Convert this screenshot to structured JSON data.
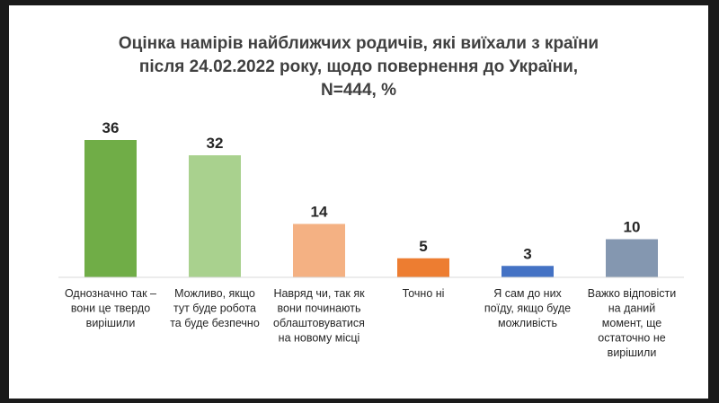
{
  "chart_data": {
    "type": "bar",
    "title": [
      "Оцінка намірів найближчих родичів, які виїхали з країни",
      "після 24.02.2022 року, щодо повернення до України,",
      "N=444, %"
    ],
    "categories": [
      [
        "Однозначно так –",
        "вони це твердо",
        "вирішили"
      ],
      [
        "Можливо, якщо",
        "тут буде робота",
        "та буде безпечно"
      ],
      [
        "Навряд чи, так як",
        "вони починають",
        "облаштовуватися",
        "на новому місці"
      ],
      [
        "Точно ні"
      ],
      [
        "Я сам до них",
        "поїду, якщо буде",
        "можливість"
      ],
      [
        "Важко відповісти",
        "на даний",
        "момент, ще",
        "остаточно не",
        "вирішили"
      ]
    ],
    "values": [
      36,
      32,
      14,
      5,
      3,
      10
    ],
    "colors": [
      "#70AD47",
      "#A9D18E",
      "#F4B183",
      "#ED7D31",
      "#4472C4",
      "#8497B0"
    ],
    "ylim": [
      0,
      36
    ],
    "grid": false,
    "legend": "none"
  }
}
